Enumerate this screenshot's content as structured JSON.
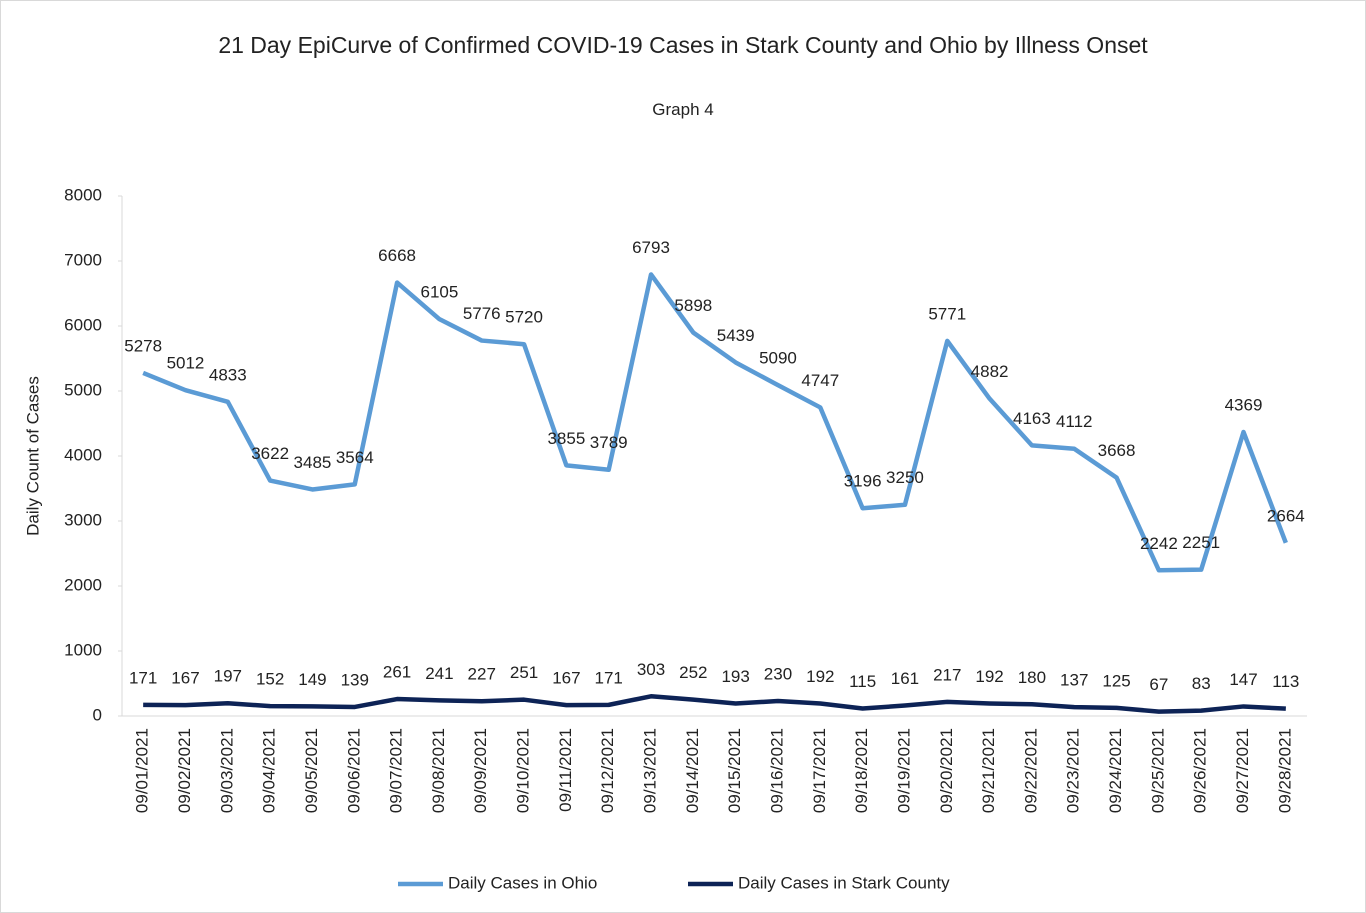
{
  "chart_data": {
    "type": "line",
    "title": "21 Day EpiCurve of Confirmed COVID-19 Cases in Stark County and Ohio by Illness Onset",
    "subtitle": "Graph 4",
    "y_label": "Daily Count of Cases",
    "categories": [
      "09/01/2021",
      "09/02/2021",
      "09/03/2021",
      "09/04/2021",
      "09/05/2021",
      "09/06/2021",
      "09/07/2021",
      "09/08/2021",
      "09/09/2021",
      "09/10/2021",
      "09/11/2021",
      "09/12/2021",
      "09/13/2021",
      "09/14/2021",
      "09/15/2021",
      "09/16/2021",
      "09/17/2021",
      "09/18/2021",
      "09/19/2021",
      "09/20/2021",
      "09/21/2021",
      "09/22/2021",
      "09/23/2021",
      "09/24/2021",
      "09/25/2021",
      "09/26/2021",
      "09/27/2021",
      "09/28/2021"
    ],
    "series": [
      {
        "name": "Daily Cases in Ohio",
        "color": "#5b9bd5",
        "values": [
          5278,
          5012,
          4833,
          3622,
          3485,
          3564,
          6668,
          6105,
          5776,
          5720,
          3855,
          3789,
          6793,
          5898,
          5439,
          5090,
          4747,
          3196,
          3250,
          5771,
          4882,
          4163,
          4112,
          3668,
          2242,
          2251,
          4369,
          2664
        ]
      },
      {
        "name": "Daily Cases in Stark County",
        "color": "#0d2356",
        "values": [
          171,
          167,
          197,
          152,
          149,
          139,
          261,
          241,
          227,
          251,
          167,
          171,
          303,
          252,
          193,
          230,
          192,
          115,
          161,
          217,
          192,
          180,
          137,
          125,
          67,
          83,
          147,
          113
        ]
      }
    ],
    "ylim": [
      0,
      8000
    ],
    "yticks": [
      0,
      1000,
      2000,
      3000,
      4000,
      5000,
      6000,
      7000,
      8000
    ],
    "legend": "bottom"
  }
}
